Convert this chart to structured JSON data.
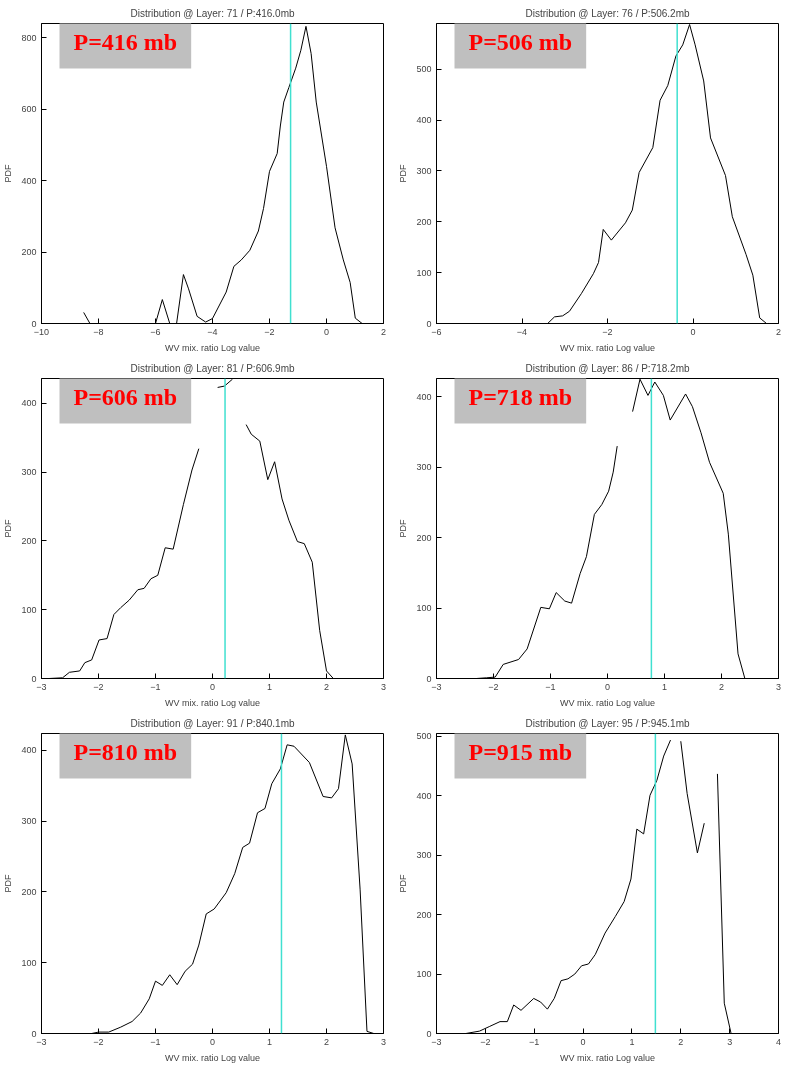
{
  "chart_data": [
    {
      "type": "line",
      "title": "Distribution @ Layer: 71 / P:416.0mb",
      "xlabel": "WV mix. ratio Log value",
      "ylabel": "PDF",
      "xlim": [
        -10,
        2
      ],
      "ylim": [
        0,
        840
      ],
      "xticks": [
        -10,
        -8,
        -6,
        -4,
        -2,
        0,
        2
      ],
      "yticks": [
        0,
        200,
        400,
        600,
        800
      ],
      "grid": false,
      "annotations": [
        "P=416 mb"
      ],
      "ref_lines": [
        {
          "axis": "x",
          "value": -1.26,
          "color": "#40e0d0"
        }
      ],
      "series": [
        {
          "color": "#000000",
          "x": [
            -8.52,
            -8.3,
            -6.0,
            -5.76,
            -5.5,
            -5.26,
            -5.02,
            -4.84,
            -4.54,
            -4.24,
            -4.0,
            -3.52,
            -3.25,
            -2.99,
            -2.69,
            -2.39,
            -2.21,
            -2.0,
            -1.73,
            -1.62,
            -1.5,
            -1.32,
            -1.08,
            -0.9,
            -0.72,
            -0.54,
            -0.36,
            0.0,
            0.3,
            0.59,
            0.83,
            1.01,
            1.25
          ],
          "values": [
            31,
            0,
            0,
            67,
            0,
            0,
            137,
            97,
            20,
            4,
            14,
            88,
            160,
            178,
            205,
            259,
            322,
            426,
            476,
            553,
            620,
            661,
            715,
            765,
            832,
            756,
            620,
            440,
            268,
            178,
            115,
            15,
            0
          ]
        }
      ]
    },
    {
      "type": "line",
      "title": "Distribution @ Layer: 76 / P:506.2mb",
      "xlabel": "WV mix. ratio Log value",
      "ylabel": "PDF",
      "xlim": [
        -6,
        2
      ],
      "ylim": [
        0,
        590
      ],
      "xticks": [
        -6,
        -4,
        -2,
        0,
        2
      ],
      "yticks": [
        0,
        100,
        200,
        300,
        400,
        500
      ],
      "grid": false,
      "annotations": [
        "P=506 mb"
      ],
      "ref_lines": [
        {
          "axis": "x",
          "value": -0.37,
          "color": "#40e0d0"
        }
      ],
      "series": [
        {
          "color": "#000000",
          "x": [
            -4.67,
            -3.68,
            -3.4,
            -3.24,
            -3.05,
            -2.89,
            -2.61,
            -2.33,
            -2.21,
            -2.1,
            -1.91,
            -1.58,
            -1.42,
            -1.26,
            -0.94,
            -0.77,
            -0.59,
            -0.4,
            -0.24,
            -0.08,
            0.05,
            0.25,
            0.41,
            0.76,
            0.92,
            1.24,
            1.4,
            1.56,
            1.72
          ],
          "values": [
            0,
            0,
            0,
            13,
            15,
            24,
            59,
            98,
            120,
            185,
            164,
            198,
            223,
            297,
            346,
            439,
            468,
            526,
            548,
            588,
            548,
            477,
            365,
            291,
            210,
            136,
            95,
            11,
            0
          ]
        }
      ]
    },
    {
      "type": "line",
      "title": "Distribution @ Layer: 81 / P:606.9mb",
      "xlabel": "WV mix. ratio Log value",
      "ylabel": "PDF",
      "xlim": [
        -3,
        3
      ],
      "ylim": [
        0,
        436
      ],
      "xticks": [
        -3,
        -2,
        -1,
        0,
        1,
        2,
        3
      ],
      "yticks": [
        0,
        100,
        200,
        300,
        400
      ],
      "grid": false,
      "annotations": [
        "P=606 mb"
      ],
      "ref_lines": [
        {
          "axis": "x",
          "value": 0.22,
          "color": "#40e0d0"
        }
      ],
      "series": [
        {
          "color": "#000000",
          "x": [
            -2.87,
            -2.63,
            -2.51,
            -2.33,
            -2.24,
            -2.12,
            -1.99,
            -1.85,
            -1.73,
            -1.61,
            -1.46,
            -1.31,
            -1.2,
            -1.08,
            -0.96,
            -0.83,
            -0.69,
            -0.51,
            -0.36,
            -0.24,
            -0.1,
            0.09,
            0.21,
            0.35,
            0.5,
            0.59,
            0.68,
            0.83,
            0.97,
            1.09,
            1.22,
            1.34,
            1.49,
            1.61,
            1.75,
            1.88,
            2.0,
            2.12
          ],
          "values": [
            0,
            1,
            9,
            11,
            23,
            27,
            56,
            58,
            93,
            103,
            114,
            129,
            131,
            145,
            150,
            190,
            188,
            253,
            303,
            334,
            null,
            423,
            425,
            435,
            null,
            369,
            355,
            345,
            289,
            315,
            261,
            230,
            199,
            196,
            169,
            70,
            11,
            0
          ]
        }
      ]
    },
    {
      "type": "line",
      "title": "Distribution @ Layer: 86 / P:718.2mb",
      "xlabel": "WV mix. ratio Log value",
      "ylabel": "PDF",
      "xlim": [
        -3,
        3
      ],
      "ylim": [
        0,
        426
      ],
      "xticks": [
        -3,
        -2,
        -1,
        0,
        1,
        2,
        3
      ],
      "yticks": [
        0,
        100,
        200,
        300,
        400
      ],
      "grid": false,
      "annotations": [
        "P=718 mb"
      ],
      "ref_lines": [
        {
          "axis": "x",
          "value": 0.77,
          "color": "#40e0d0"
        }
      ],
      "series": [
        {
          "color": "#000000",
          "x": [
            -3.0,
            -2.3,
            -2.12,
            -1.97,
            -1.83,
            -1.56,
            -1.41,
            -1.17,
            -1.02,
            -0.9,
            -0.75,
            -0.63,
            -0.48,
            -0.37,
            -0.23,
            -0.1,
            0.02,
            0.1,
            0.17,
            0.3,
            0.44,
            0.57,
            0.71,
            0.83,
            0.98,
            1.1,
            1.37,
            1.49,
            1.64,
            1.79,
            2.03,
            2.12,
            2.29,
            2.41
          ],
          "values": [
            0,
            0,
            1,
            2,
            20,
            27,
            42,
            101,
            99,
            122,
            110,
            107,
            149,
            173,
            233,
            247,
            266,
            293,
            330,
            null,
            379,
            425,
            402,
            421,
            402,
            367,
            404,
            386,
            349,
            307,
            263,
            205,
            35,
            0
          ]
        }
      ]
    },
    {
      "type": "line",
      "title": "Distribution @ Layer: 91 / P:840.1mb",
      "xlabel": "WV mix. ratio Log value",
      "ylabel": "PDF",
      "xlim": [
        -3,
        3
      ],
      "ylim": [
        0,
        424
      ],
      "xticks": [
        -3,
        -2,
        -1,
        0,
        1,
        2,
        3
      ],
      "yticks": [
        0,
        100,
        200,
        300,
        400
      ],
      "grid": false,
      "annotations": [
        "P=810 mb"
      ],
      "ref_lines": [
        {
          "axis": "x",
          "value": 1.21,
          "color": "#40e0d0"
        }
      ],
      "series": [
        {
          "color": "#000000",
          "x": [
            -2.12,
            -2.0,
            -1.82,
            -1.61,
            -1.41,
            -1.26,
            -1.11,
            -1.0,
            -0.88,
            -0.75,
            -0.62,
            -0.48,
            -0.35,
            -0.24,
            -0.11,
            0.03,
            0.24,
            0.39,
            0.53,
            0.65,
            0.79,
            0.92,
            1.04,
            1.19,
            1.31,
            1.43,
            1.7,
            1.94,
            2.09,
            2.21,
            2.33,
            2.45,
            2.59,
            2.71,
            2.83
          ],
          "values": [
            0,
            2,
            2,
            9,
            17,
            29,
            49,
            74,
            68,
            83,
            69,
            88,
            98,
            125,
            169,
            176,
            199,
            226,
            263,
            269,
            312,
            318,
            353,
            374,
            408,
            406,
            383,
            335,
            333,
            346,
            422,
            381,
            203,
            3,
            0
          ]
        }
      ]
    },
    {
      "type": "line",
      "title": "Distribution @ Layer: 95 / P:945.1mb",
      "xlabel": "WV mix. ratio Log value",
      "ylabel": "PDF",
      "xlim": [
        -3,
        4
      ],
      "ylim": [
        0,
        505
      ],
      "xticks": [
        -3,
        -2,
        -1,
        0,
        1,
        2,
        3,
        4
      ],
      "yticks": [
        0,
        100,
        200,
        300,
        400,
        500
      ],
      "grid": false,
      "annotations": [
        "P=915 mb"
      ],
      "ref_lines": [
        {
          "axis": "x",
          "value": 1.48,
          "color": "#40e0d0"
        }
      ],
      "series": [
        {
          "color": "#000000",
          "x": [
            -2.4,
            -2.12,
            -1.91,
            -1.7,
            -1.55,
            -1.42,
            -1.27,
            -1.01,
            -0.87,
            -0.73,
            -0.59,
            -0.45,
            -0.31,
            -0.17,
            -0.03,
            0.11,
            0.25,
            0.45,
            0.66,
            0.84,
            0.98,
            1.1,
            1.24,
            1.37,
            1.51,
            1.65,
            1.79,
            1.93,
            2.0,
            2.13,
            2.34,
            2.48,
            2.61,
            2.75,
            2.89,
            3.03
          ],
          "values": [
            0,
            4,
            12,
            20,
            20,
            48,
            39,
            59,
            53,
            41,
            59,
            89,
            92,
            100,
            114,
            117,
            133,
            169,
            197,
            222,
            260,
            344,
            336,
            401,
            426,
            467,
            494,
            null,
            492,
            404,
            304,
            354,
            null,
            437,
            51,
            0
          ]
        }
      ]
    }
  ]
}
